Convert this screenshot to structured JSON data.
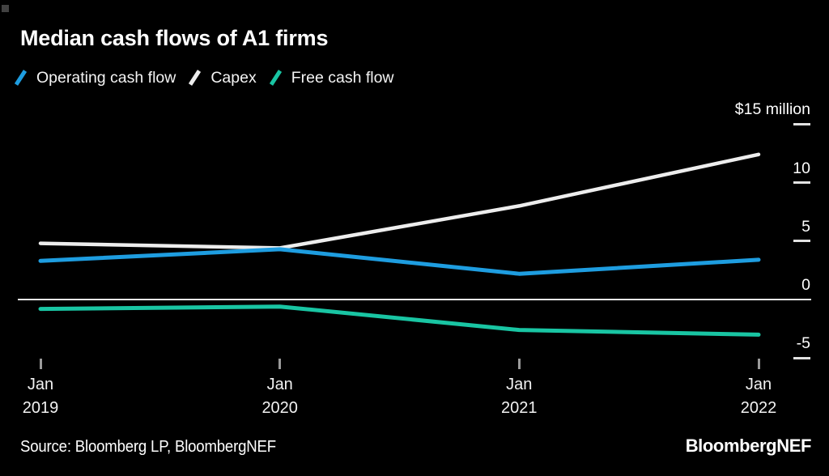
{
  "title": "Median cash flows of A1 firms",
  "legend": [
    {
      "label": "Operating cash flow",
      "color": "#1e9de0"
    },
    {
      "label": "Capex",
      "color": "#ededed"
    },
    {
      "label": "Free cash flow",
      "color": "#19c5a3"
    }
  ],
  "chart_data": {
    "type": "line",
    "categories": [
      "Jan 2019",
      "Jan 2020",
      "Jan 2021",
      "Jan 2022"
    ],
    "series": [
      {
        "name": "Operating cash flow",
        "color": "#1e9de0",
        "width": 5,
        "values": [
          3.3,
          4.3,
          2.2,
          3.4
        ]
      },
      {
        "name": "Capex",
        "color": "#ededed",
        "width": 4.5,
        "values": [
          4.8,
          4.4,
          8.0,
          12.4
        ]
      },
      {
        "name": "Free cash flow",
        "color": "#19c5a3",
        "width": 5,
        "values": [
          -0.8,
          -0.6,
          -2.6,
          -3.0
        ]
      }
    ],
    "title": "Median cash flows of A1 firms",
    "xlabel": "",
    "ylabel": "",
    "unit_label": "$15 million",
    "yticks": [
      15,
      10,
      5,
      0,
      -5
    ],
    "ytick_labels": [
      "$15 million",
      "10",
      "5",
      "0",
      "-5"
    ],
    "ylim": [
      -5.5,
      15.5
    ],
    "x_tick_labels": [
      [
        "Jan",
        "2019"
      ],
      [
        "Jan",
        "2020"
      ],
      [
        "Jan",
        "2021"
      ],
      [
        "Jan",
        "2022"
      ]
    ],
    "grid": "off",
    "zero_line": true,
    "legend_position": "top-left"
  },
  "footer": {
    "source": "Source: Bloomberg LP, BloombergNEF",
    "logo": "BloombergNEF"
  },
  "colors": {
    "background": "#000000",
    "text": "#ffffff",
    "zero_line": "#e9e9e9",
    "y_tick": "#e2e2e2",
    "x_tick": "#9a9a9a"
  }
}
